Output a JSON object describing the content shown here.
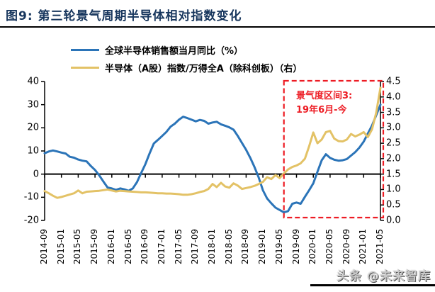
{
  "header": {
    "title": "图9:  第三轮景气周期半导体相对指数变化"
  },
  "legend": {
    "items": [
      {
        "label": "全球半导体销售额当月同比（%）",
        "color": "#2B74B8"
      },
      {
        "label": "半导体（A股）指数/万得全A（除科创板）（右）",
        "color": "#E3C266"
      }
    ]
  },
  "watermark": {
    "text": "头条 @未来智库"
  },
  "chart_data": {
    "type": "line",
    "title": "第三轮景气周期半导体相对指数变化",
    "x_frequency": "monthly",
    "x_start": "2014-09",
    "x_end": "2021-05",
    "x_tick_labels": [
      "2014-09",
      "2015-01",
      "2015-05",
      "2015-09",
      "2016-01",
      "2016-05",
      "2016-09",
      "2017-01",
      "2017-05",
      "2017-09",
      "2018-01",
      "2018-05",
      "2018-09",
      "2019-01",
      "2019-05",
      "2019-09",
      "2020-01",
      "2020-05",
      "2020-09",
      "2021-01",
      "2021-05"
    ],
    "left_axis": {
      "min": -20,
      "max": 40,
      "ticks": [
        "40",
        "30",
        "20",
        "10",
        "0",
        "-10",
        "-20"
      ]
    },
    "right_axis": {
      "min": 0,
      "max": 4.5,
      "ticks": [
        "4.5",
        "4.0",
        "3.5",
        "3.0",
        "2.5",
        "2.0",
        "1.5",
        "1.0",
        "0.5",
        "0.0"
      ]
    },
    "grid": false,
    "legend_position": "top",
    "series": [
      {
        "name": "全球半导体销售额当月同比（%）",
        "axis": "left",
        "color": "#2B74B8",
        "values": [
          9.0,
          9.8,
          10.2,
          9.8,
          9.3,
          8.9,
          7.5,
          7.1,
          6.3,
          5.8,
          5.5,
          3.5,
          1.8,
          -0.5,
          -3.2,
          -5.8,
          -6.2,
          -6.8,
          -6.2,
          -6.6,
          -7.2,
          -6.2,
          -3.5,
          0.5,
          4.3,
          8.9,
          13.2,
          14.8,
          16.5,
          18.2,
          20.5,
          21.8,
          23.5,
          24.8,
          24.2,
          23.5,
          22.8,
          23.4,
          23.0,
          21.8,
          22.3,
          22.6,
          21.5,
          20.9,
          20.2,
          19.2,
          16.5,
          13.5,
          10.5,
          7.0,
          3.0,
          -1.5,
          -7.0,
          -10.5,
          -12.6,
          -14.5,
          -15.5,
          -16.5,
          -16.0,
          -12.8,
          -12.3,
          -12.8,
          -9.8,
          -7.0,
          -4.0,
          1.0,
          6.0,
          8.6,
          7.0,
          6.2,
          5.8,
          6.0,
          6.5,
          8.0,
          9.5,
          11.5,
          14.0,
          17.5,
          21.0,
          25.5,
          30.0
        ]
      },
      {
        "name": "半导体（A股）指数/万得全A（除科创板）（右）",
        "axis": "right",
        "color": "#E3C266",
        "values": [
          0.95,
          0.88,
          0.8,
          0.73,
          0.76,
          0.8,
          0.84,
          0.88,
          0.97,
          0.88,
          0.93,
          0.94,
          0.95,
          0.96,
          0.98,
          1.0,
          0.97,
          0.94,
          0.96,
          0.95,
          0.94,
          0.93,
          0.92,
          0.91,
          0.91,
          0.9,
          0.89,
          0.88,
          0.88,
          0.87,
          0.87,
          0.86,
          0.85,
          0.83,
          0.83,
          0.85,
          0.88,
          0.92,
          0.95,
          1.02,
          1.18,
          1.08,
          1.22,
          1.1,
          1.06,
          1.2,
          1.13,
          1.02,
          1.05,
          1.08,
          1.12,
          1.18,
          1.25,
          1.4,
          1.34,
          1.47,
          1.37,
          1.52,
          1.65,
          1.73,
          1.78,
          1.85,
          2.0,
          2.4,
          2.85,
          2.5,
          2.62,
          2.86,
          2.9,
          2.65,
          2.57,
          2.56,
          2.62,
          2.8,
          2.72,
          2.78,
          2.86,
          2.7,
          2.95,
          3.5,
          4.3
        ]
      }
    ],
    "annotation": {
      "line1": "景气度区间3:",
      "line2": "19年6月-今",
      "color": "#ED1C24",
      "highlight_box_from": "2019-06",
      "highlight_box_to": "2021-05"
    }
  }
}
